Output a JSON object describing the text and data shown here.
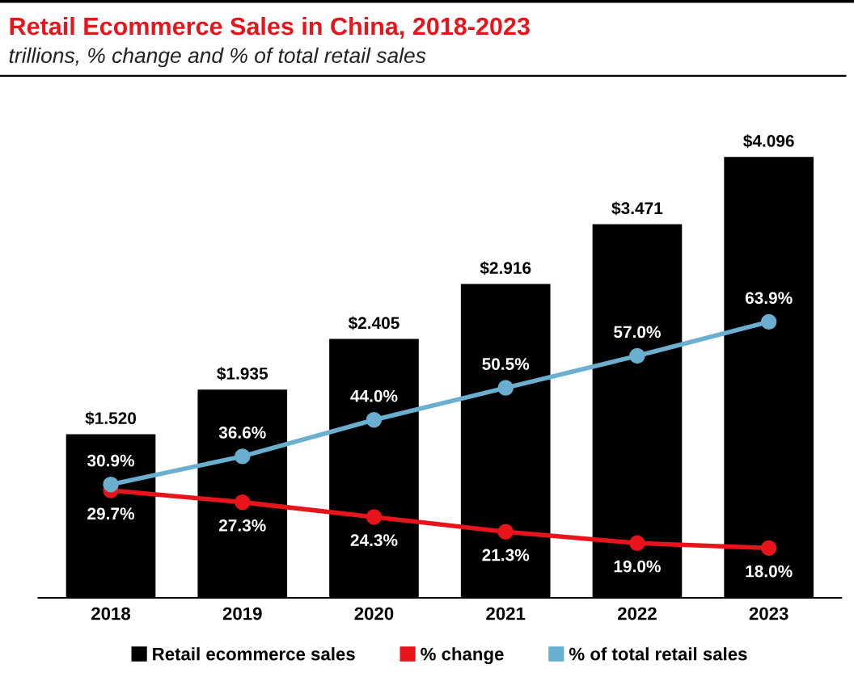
{
  "chart_data": {
    "type": "bar",
    "title": "Retail Ecommerce Sales in China, 2018-2023",
    "subtitle": "trillions, % change and % of total retail sales",
    "categories": [
      "2018",
      "2019",
      "2020",
      "2021",
      "2022",
      "2023"
    ],
    "series": [
      {
        "name": "Retail ecommerce sales",
        "color": "#000000",
        "values": [
          1.52,
          1.935,
          2.405,
          2.916,
          3.471,
          4.096
        ],
        "value_labels": [
          "$1.520",
          "$1.935",
          "$2.405",
          "$2.916",
          "$3.471",
          "$4.096"
        ]
      },
      {
        "name": "% change",
        "type": "line",
        "axis": "y2",
        "color": "#e8141b",
        "values": [
          29.7,
          27.3,
          24.3,
          21.3,
          19.0,
          18.0
        ],
        "value_labels": [
          "29.7%",
          "27.3%",
          "24.3%",
          "21.3%",
          "19.0%",
          "18.0%"
        ]
      },
      {
        "name": "% of total retail sales",
        "type": "line",
        "axis": "y2",
        "color": "#6aaed0",
        "values": [
          30.9,
          36.6,
          44.0,
          50.5,
          57.0,
          63.9
        ],
        "value_labels": [
          "30.9%",
          "36.6%",
          "44.0%",
          "50.5%",
          "57.0%",
          "63.9%"
        ]
      }
    ],
    "tick_labels": "x",
    "grid": false,
    "legend": "bottom",
    "marker": "circle",
    "line_style": "solid"
  }
}
